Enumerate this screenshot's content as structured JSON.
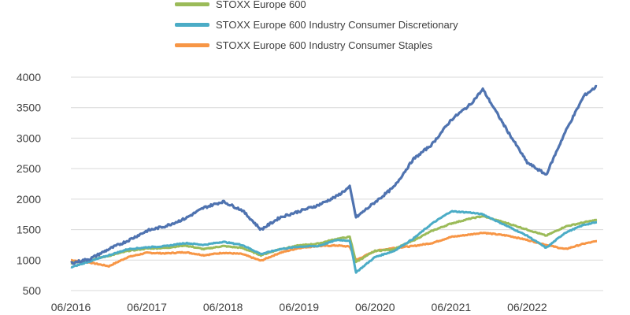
{
  "chart_data": {
    "type": "line",
    "title": "",
    "xlabel": "",
    "ylabel": "",
    "x_ticks": [
      "06/2016",
      "06/2017",
      "06/2018",
      "06/2019",
      "06/2020",
      "06/2021",
      "06/2022"
    ],
    "y_ticks": [
      500,
      1000,
      1500,
      2000,
      2500,
      3000,
      3500,
      4000
    ],
    "ylim": [
      500,
      4000
    ],
    "xlim": [
      "2016-06",
      "2023-06"
    ],
    "grid": "horizontal",
    "legend_position": "top",
    "legend": [
      {
        "label": "STOXX Europe 600",
        "color": "#9BBB59"
      },
      {
        "label": "STOXX Europe 600 Industry Consumer Discretionary",
        "color": "#4BACC6"
      },
      {
        "label": "STOXX Europe 600 Industry Consumer Staples",
        "color": "#F79646"
      }
    ],
    "series": [
      {
        "color": "#4F73B0",
        "x": [
          "2016-06",
          "2016-09",
          "2016-12",
          "2017-03",
          "2017-06",
          "2017-09",
          "2017-12",
          "2018-03",
          "2018-06",
          "2018-09",
          "2018-12",
          "2019-03",
          "2019-06",
          "2019-09",
          "2019-12",
          "2020-02",
          "2020-03",
          "2020-06",
          "2020-09",
          "2020-12",
          "2021-03",
          "2021-06",
          "2021-09",
          "2021-11",
          "2022-03",
          "2022-06",
          "2022-09",
          "2022-12",
          "2023-03",
          "2023-05"
        ],
        "values": [
          950,
          1020,
          1180,
          1320,
          1480,
          1560,
          1680,
          1860,
          1960,
          1820,
          1500,
          1700,
          1800,
          1900,
          2050,
          2200,
          1700,
          1950,
          2200,
          2650,
          2900,
          3300,
          3550,
          3800,
          3100,
          2600,
          2400,
          3100,
          3700,
          3850
        ]
      },
      {
        "name": "STOXX Europe 600",
        "color": "#9BBB59",
        "x": [
          "2016-06",
          "2016-09",
          "2016-12",
          "2017-03",
          "2017-06",
          "2017-09",
          "2017-12",
          "2018-03",
          "2018-06",
          "2018-09",
          "2018-12",
          "2019-03",
          "2019-06",
          "2019-09",
          "2019-12",
          "2020-02",
          "2020-03",
          "2020-06",
          "2020-09",
          "2020-12",
          "2021-03",
          "2021-06",
          "2021-09",
          "2021-11",
          "2022-03",
          "2022-06",
          "2022-09",
          "2022-12",
          "2023-03",
          "2023-05"
        ],
        "values": [
          950,
          1000,
          1070,
          1150,
          1190,
          1200,
          1240,
          1180,
          1230,
          1200,
          1080,
          1180,
          1240,
          1270,
          1350,
          1380,
          970,
          1150,
          1180,
          1320,
          1480,
          1600,
          1680,
          1720,
          1600,
          1500,
          1400,
          1550,
          1620,
          1660
        ]
      },
      {
        "name": "STOXX Europe 600 Industry Consumer Discretionary",
        "color": "#4BACC6",
        "x": [
          "2016-06",
          "2016-09",
          "2016-12",
          "2017-03",
          "2017-06",
          "2017-09",
          "2017-12",
          "2018-03",
          "2018-06",
          "2018-09",
          "2018-12",
          "2019-03",
          "2019-06",
          "2019-09",
          "2019-12",
          "2020-02",
          "2020-03",
          "2020-06",
          "2020-09",
          "2020-12",
          "2021-03",
          "2021-06",
          "2021-09",
          "2021-11",
          "2022-03",
          "2022-06",
          "2022-09",
          "2022-12",
          "2023-03",
          "2023-05"
        ],
        "values": [
          880,
          980,
          1080,
          1180,
          1210,
          1230,
          1280,
          1250,
          1300,
          1250,
          1100,
          1180,
          1220,
          1230,
          1330,
          1320,
          800,
          1050,
          1150,
          1350,
          1600,
          1800,
          1780,
          1750,
          1550,
          1400,
          1200,
          1450,
          1580,
          1620
        ]
      },
      {
        "name": "STOXX Europe 600 Industry Consumer Staples",
        "color": "#F79646",
        "x": [
          "2016-06",
          "2016-09",
          "2016-12",
          "2017-03",
          "2017-06",
          "2017-09",
          "2017-12",
          "2018-03",
          "2018-06",
          "2018-09",
          "2018-12",
          "2019-03",
          "2019-06",
          "2019-09",
          "2019-12",
          "2020-02",
          "2020-03",
          "2020-06",
          "2020-09",
          "2020-12",
          "2021-03",
          "2021-06",
          "2021-09",
          "2021-11",
          "2022-03",
          "2022-06",
          "2022-09",
          "2022-12",
          "2023-03",
          "2023-05"
        ],
        "values": [
          1000,
          960,
          900,
          1050,
          1120,
          1110,
          1130,
          1080,
          1120,
          1100,
          990,
          1120,
          1200,
          1230,
          1240,
          1220,
          1000,
          1150,
          1200,
          1230,
          1280,
          1380,
          1420,
          1450,
          1400,
          1330,
          1250,
          1180,
          1270,
          1310
        ]
      }
    ]
  }
}
